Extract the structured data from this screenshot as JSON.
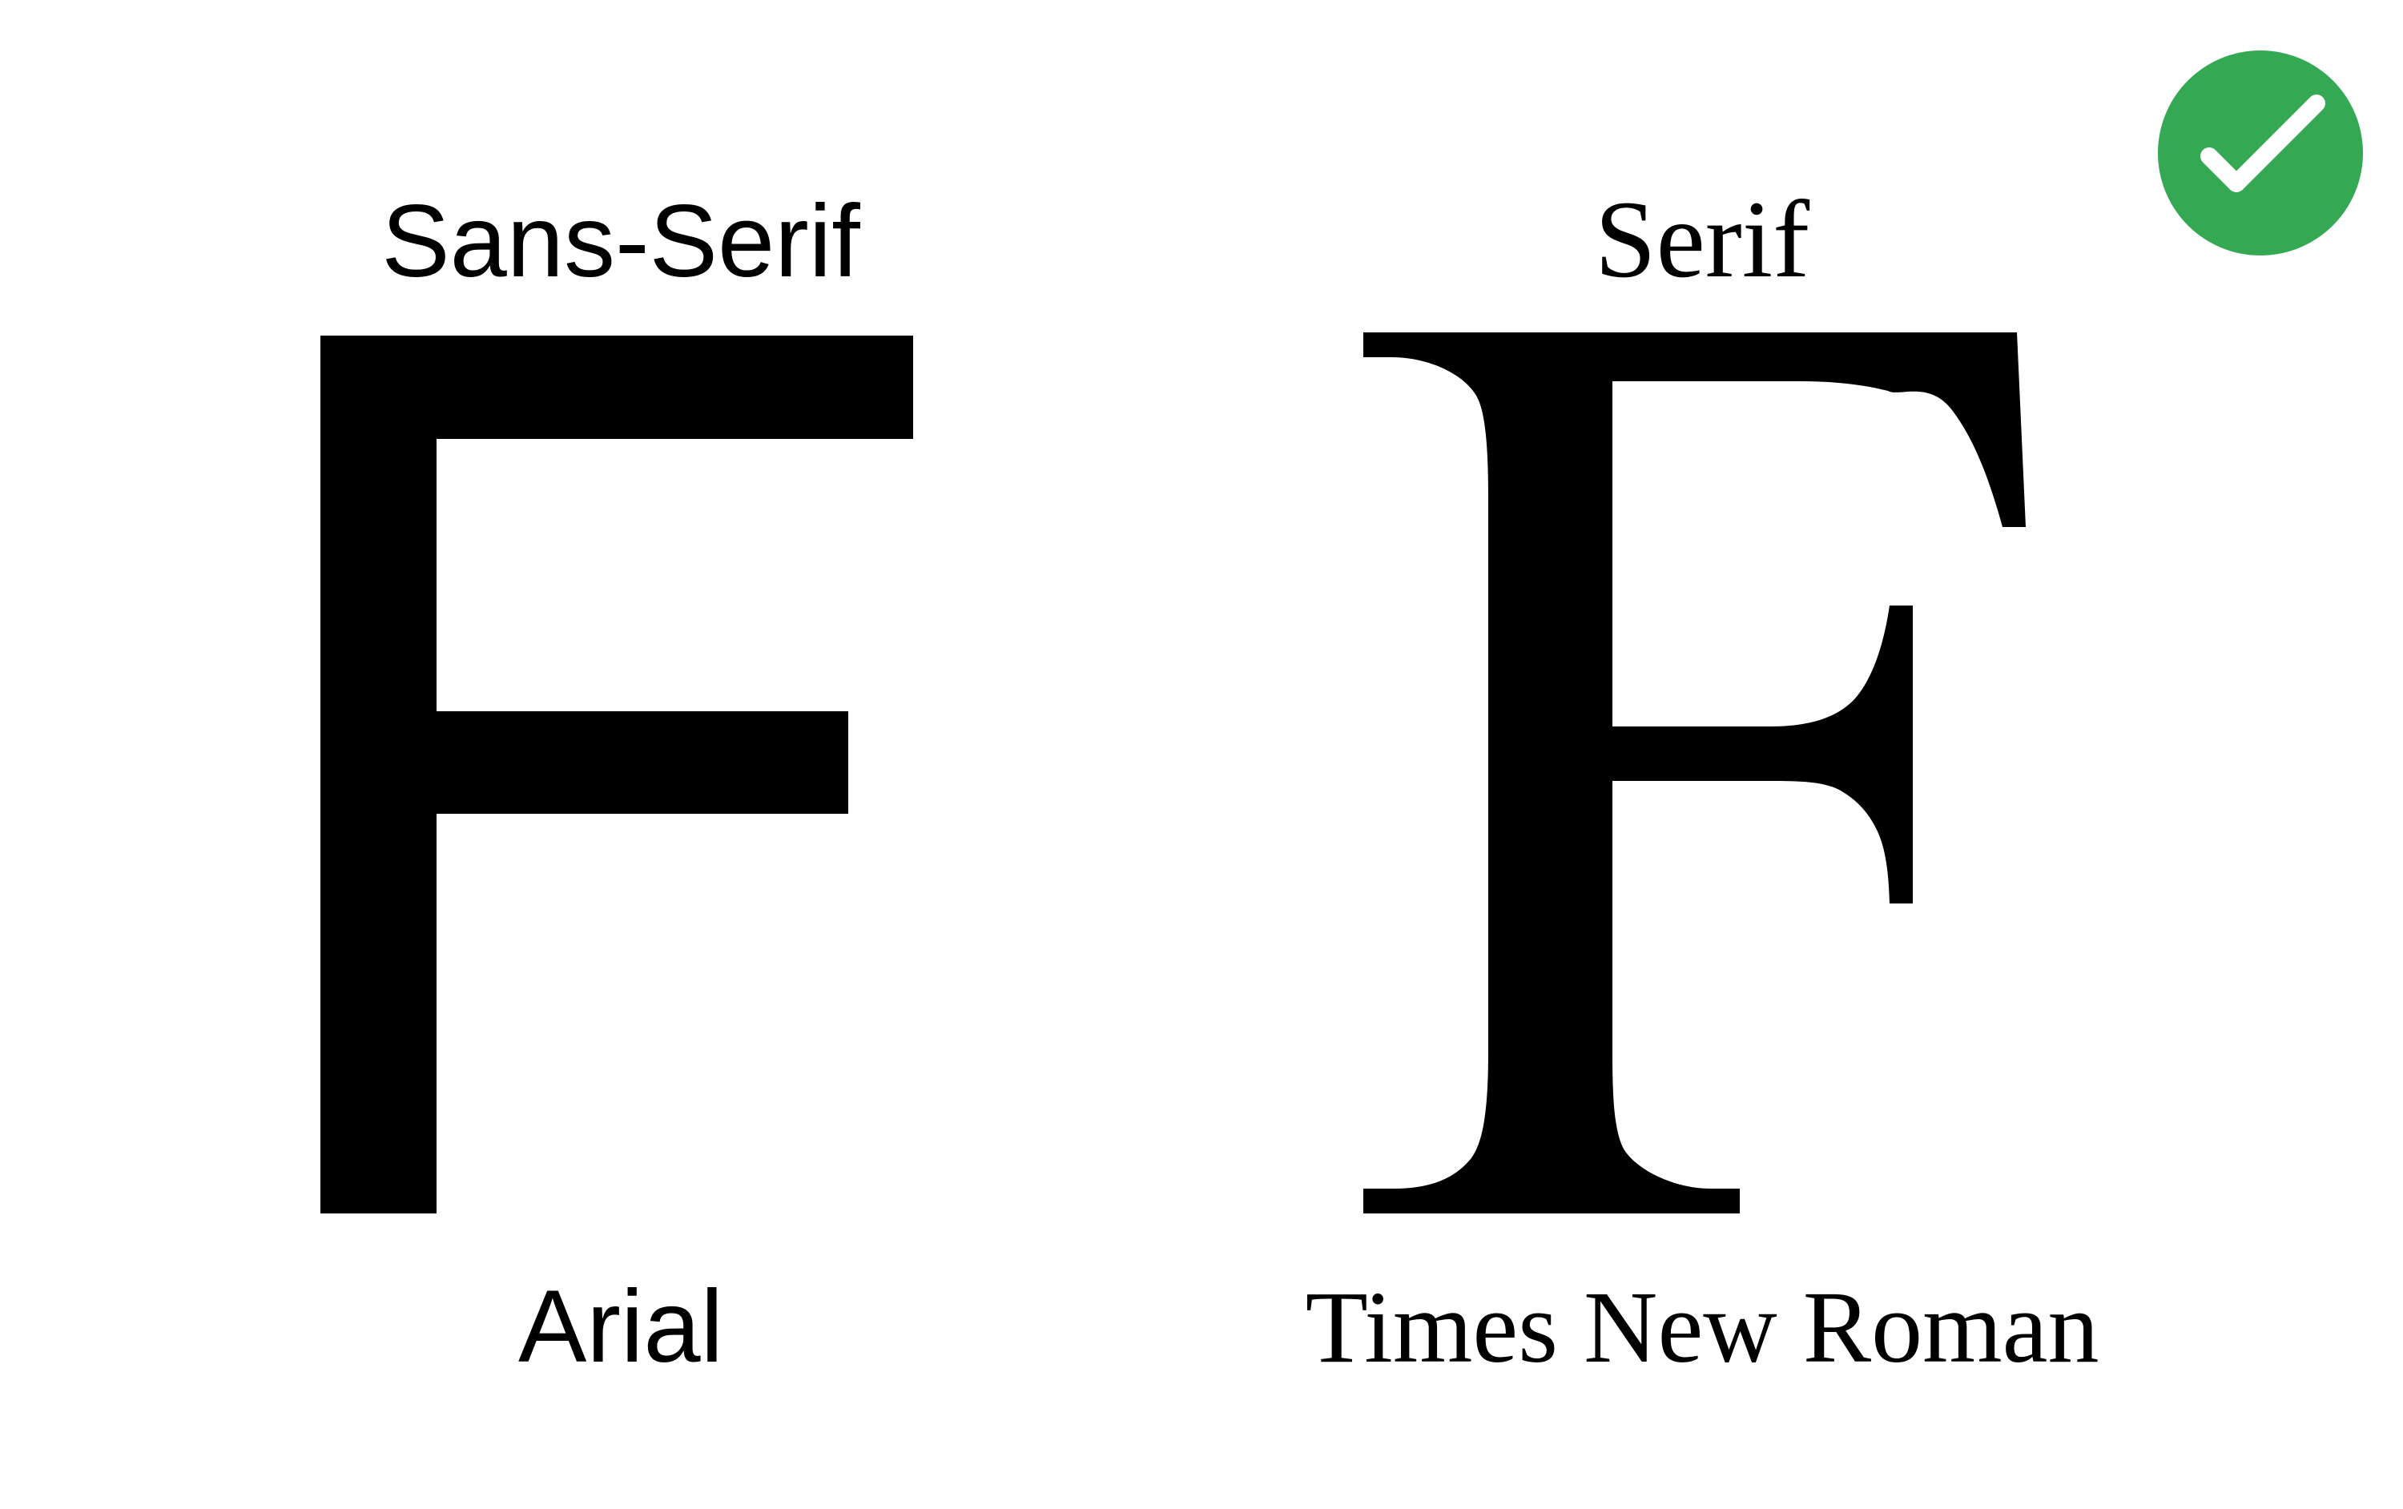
{
  "left_panel": {
    "category": "Sans-Serif",
    "glyph": "F",
    "font_name": "Arial"
  },
  "right_panel": {
    "category": "Serif",
    "glyph": "F",
    "font_name": "Times New Roman"
  },
  "badge": {
    "icon": "checkmark-icon",
    "color": "#34a853"
  }
}
